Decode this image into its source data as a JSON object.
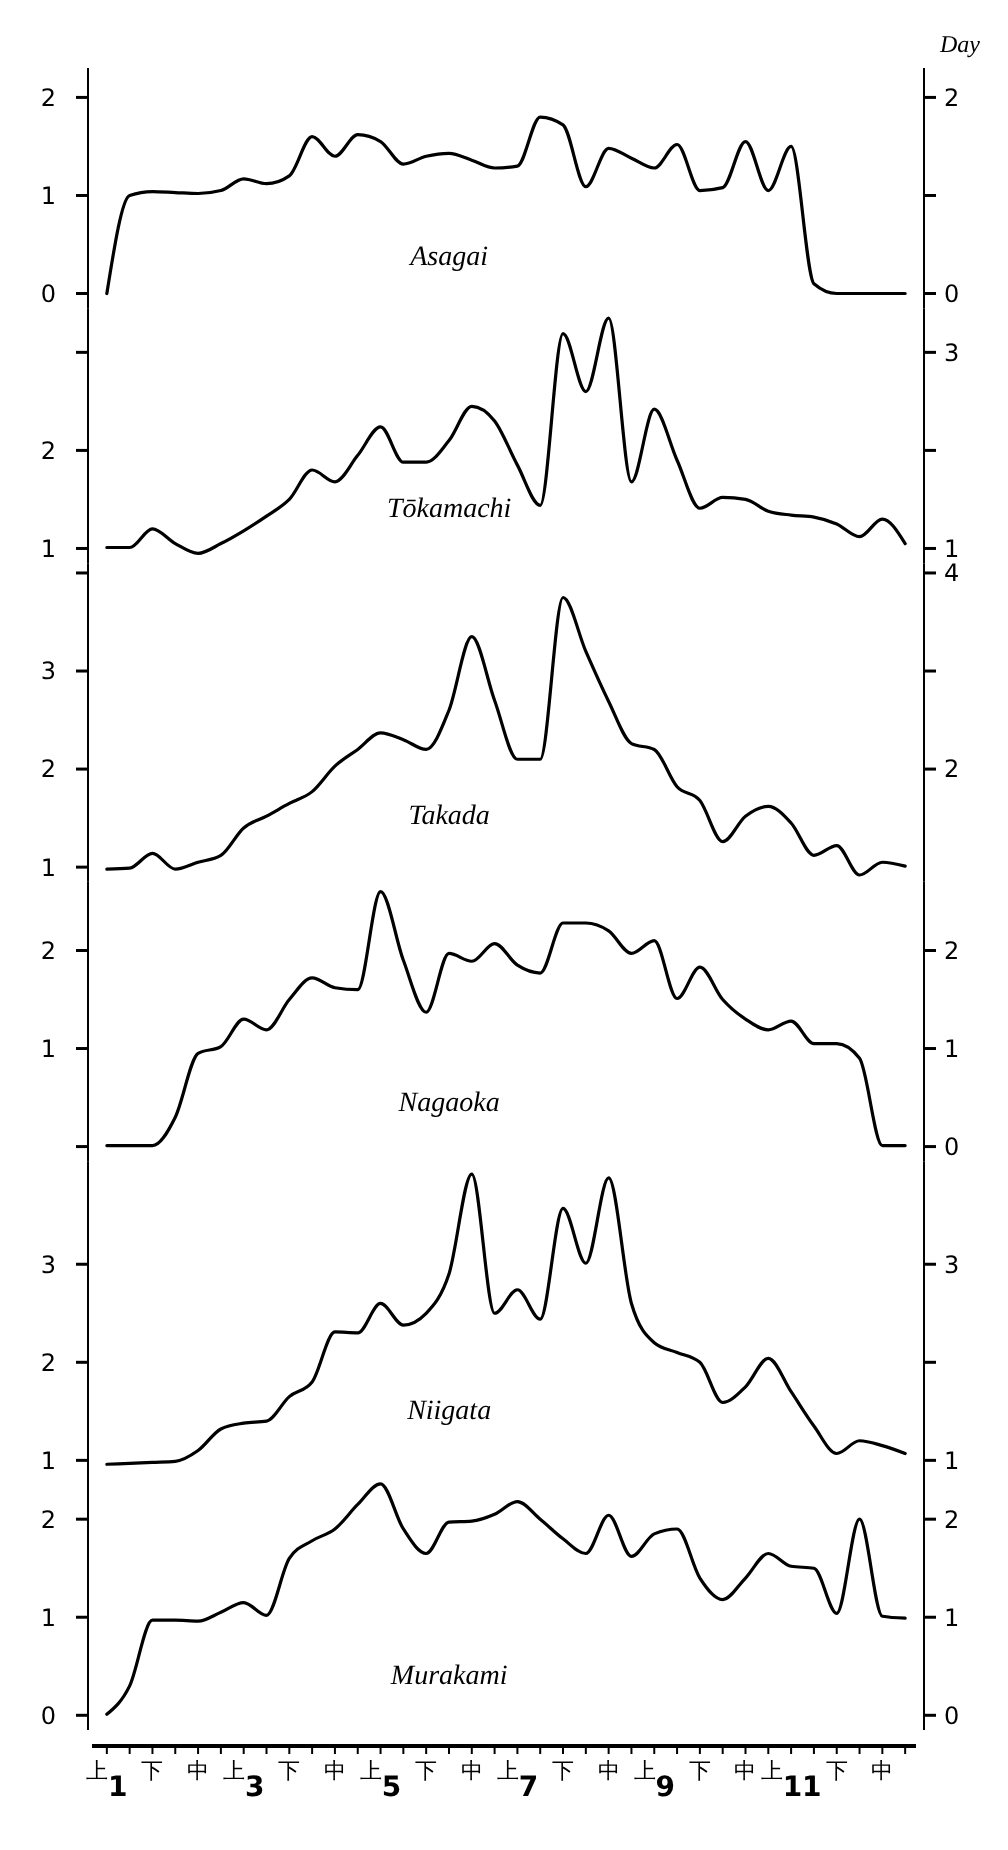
{
  "chart_data": [
    {
      "type": "line",
      "title": "Asagai",
      "y2label": "Day",
      "color": "#000000",
      "tick_labels": "y",
      "ylim": [
        -0.15,
        2.3
      ],
      "yticks": [
        0,
        1,
        2
      ],
      "y2lim": [
        -0.15,
        2.3
      ],
      "y2ticks": [
        {
          "value": 2,
          "label": "2"
        },
        {
          "value": 1,
          "label": null
        },
        {
          "value": 0,
          "label": "0"
        }
      ],
      "values": [
        0,
        1.0,
        1.04,
        1.03,
        1.02,
        1.05,
        1.17,
        1.12,
        1.2,
        1.6,
        1.4,
        1.62,
        1.55,
        1.32,
        1.4,
        1.43,
        1.36,
        1.28,
        1.3,
        1.8,
        1.72,
        1.09,
        1.48,
        1.38,
        1.28,
        1.52,
        1.05,
        1.08,
        1.55,
        1.05,
        1.5,
        0.1,
        0,
        0,
        0,
        0
      ]
    },
    {
      "type": "line",
      "title": "Tōkamachi",
      "color": "#000000",
      "tick_labels": "y",
      "ylim": [
        0.85,
        3.45
      ],
      "yticks": [
        1,
        2,
        {
          "value": 3,
          "label": null
        }
      ],
      "y2lim": [
        0.85,
        3.45
      ],
      "y2ticks": [
        {
          "value": 3,
          "label": "3"
        },
        {
          "value": 2,
          "label": null
        },
        {
          "value": 1,
          "label": "1"
        }
      ],
      "values": [
        1.01,
        1.01,
        1.2,
        1.05,
        0.95,
        1.05,
        1.18,
        1.33,
        1.5,
        1.8,
        1.68,
        1.95,
        2.24,
        1.88,
        1.88,
        2.1,
        2.45,
        2.3,
        1.85,
        1.44,
        3.19,
        2.6,
        3.35,
        1.68,
        2.42,
        1.9,
        1.41,
        1.52,
        1.5,
        1.38,
        1.34,
        1.32,
        1.25,
        1.12,
        1.3,
        1.05
      ]
    },
    {
      "type": "line",
      "title": "Takada",
      "color": "#000000",
      "tick_labels": "y",
      "ylim": [
        0.85,
        4.1
      ],
      "yticks": [
        1,
        2,
        3,
        {
          "value": 4,
          "label": null
        }
      ],
      "y2lim": [
        0.85,
        4.1
      ],
      "y2ticks": [
        {
          "value": 4,
          "label": "4"
        },
        {
          "value": 3,
          "label": null
        },
        {
          "value": 2,
          "label": "2"
        }
      ],
      "values": [
        0.98,
        0.99,
        1.14,
        0.98,
        1.05,
        1.12,
        1.4,
        1.52,
        1.65,
        1.77,
        2.03,
        2.2,
        2.37,
        2.3,
        2.2,
        2.6,
        3.35,
        2.7,
        2.1,
        2.1,
        3.75,
        3.2,
        2.69,
        2.26,
        2.2,
        1.82,
        1.68,
        1.26,
        1.52,
        1.62,
        1.45,
        1.12,
        1.22,
        0.92,
        1.05,
        1.01
      ]
    },
    {
      "type": "line",
      "title": "Nagaoka",
      "color": "#000000",
      "tick_labels": "y",
      "ylim": [
        -0.15,
        2.7
      ],
      "yticks": [
        {
          "value": 0,
          "label": null
        },
        1,
        2
      ],
      "y2lim": [
        -0.15,
        2.7
      ],
      "y2ticks": [
        {
          "value": 2,
          "label": "2"
        },
        {
          "value": 1,
          "label": "1"
        },
        {
          "value": 0,
          "label": "0"
        }
      ],
      "values": [
        0.01,
        0.01,
        0.01,
        0.3,
        0.95,
        1.02,
        1.3,
        1.19,
        1.5,
        1.72,
        1.62,
        1.6,
        2.6,
        1.9,
        1.37,
        1.97,
        1.89,
        2.07,
        1.85,
        1.77,
        2.28,
        2.28,
        2.2,
        1.97,
        2.1,
        1.51,
        1.83,
        1.5,
        1.3,
        1.19,
        1.28,
        1.05,
        1.05,
        0.9,
        0.01,
        0.01
      ]
    },
    {
      "type": "line",
      "title": "Niigata",
      "color": "#000000",
      "tick_labels": "y",
      "ylim": [
        0.85,
        4.05
      ],
      "yticks": [
        1,
        2,
        3
      ],
      "y2lim": [
        0.85,
        4.05
      ],
      "y2ticks": [
        {
          "value": 3,
          "label": "3"
        },
        {
          "value": 2,
          "label": null
        },
        {
          "value": 1,
          "label": "1"
        }
      ],
      "values": [
        0.96,
        0.97,
        0.98,
        0.99,
        1.1,
        1.32,
        1.38,
        1.4,
        1.65,
        1.8,
        2.31,
        2.3,
        2.6,
        2.38,
        2.5,
        2.9,
        3.92,
        2.5,
        2.74,
        2.44,
        3.57,
        3.01,
        3.88,
        2.6,
        2.2,
        2.1,
        2.0,
        1.59,
        1.75,
        2.04,
        1.7,
        1.35,
        1.07,
        1.2,
        1.15,
        1.07
      ]
    },
    {
      "type": "line",
      "title": "Murakami",
      "color": "#000000",
      "ylim": [
        -0.15,
        2.45
      ],
      "yticks": [
        0,
        1,
        2
      ],
      "y2lim": [
        -0.15,
        2.45
      ],
      "y2ticks": [
        {
          "value": 2,
          "label": "2"
        },
        {
          "value": 1,
          "label": "1"
        },
        {
          "value": 0,
          "label": "0"
        }
      ],
      "categories": [
        "上1",
        null,
        "下",
        null,
        "中",
        null,
        "上3",
        null,
        "下",
        null,
        "中",
        null,
        "上5",
        null,
        "下",
        null,
        "中",
        null,
        "上7",
        null,
        "下",
        null,
        "中",
        null,
        "上9",
        null,
        "下",
        null,
        "中",
        null,
        "上11",
        null,
        "下",
        null,
        "中",
        null
      ],
      "values": [
        0.01,
        0.3,
        0.97,
        0.97,
        0.96,
        1.05,
        1.15,
        1.02,
        1.6,
        1.78,
        1.9,
        2.15,
        2.36,
        1.9,
        1.65,
        1.97,
        1.98,
        2.05,
        2.18,
        2.0,
        1.8,
        1.65,
        2.04,
        1.62,
        1.85,
        1.9,
        1.4,
        1.18,
        1.4,
        1.65,
        1.52,
        1.5,
        1.04,
        2.0,
        1.01,
        0.99
      ]
    }
  ]
}
